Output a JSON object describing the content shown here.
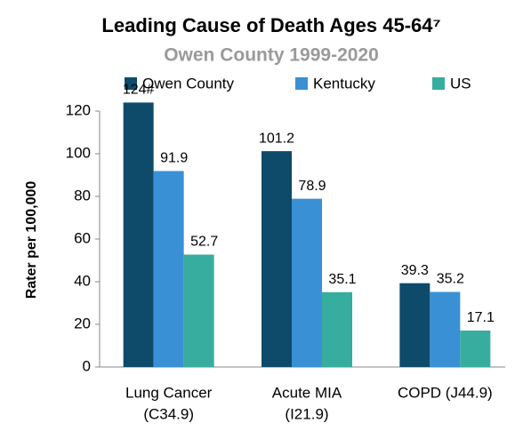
{
  "chart_data": {
    "type": "bar",
    "title": "Leading Cause of Death Ages 45-64⁷",
    "subtitle": "Owen County 1999-2020",
    "y_label": "Rater per 100,000",
    "categories": [
      [
        "Lung Cancer",
        "(C34.9)"
      ],
      [
        "Acute MIA",
        "(I21.9)"
      ],
      [
        "COPD (J44.9)"
      ]
    ],
    "series": [
      {
        "name": "Owen County",
        "color": "#0e4a6a",
        "values": [
          124,
          101.2,
          39.3
        ],
        "value_labels": [
          "124#",
          "101.2",
          "39.3"
        ]
      },
      {
        "name": "Kentucky",
        "color": "#3a90d4",
        "values": [
          91.9,
          78.9,
          35.2
        ]
      },
      {
        "name": "US",
        "color": "#37ad9f",
        "values": [
          52.7,
          35.1,
          17.1
        ]
      }
    ],
    "ylim": [
      0,
      120
    ],
    "yticks": [
      0,
      20,
      40,
      60,
      80,
      100,
      120
    ],
    "grid": false
  }
}
